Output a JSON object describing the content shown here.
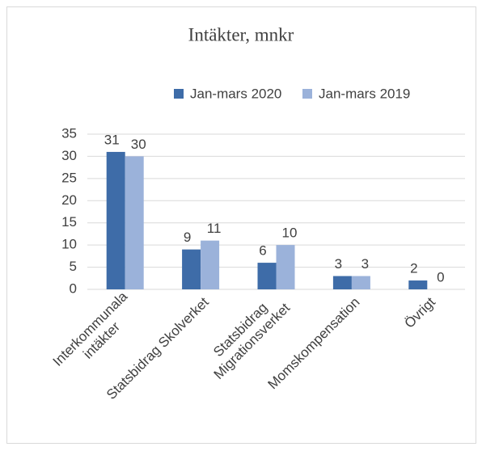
{
  "chart_data": {
    "type": "bar",
    "title": "Intäkter, mnkr",
    "categories": [
      "Interkommunala\nintäkter",
      "Statsbidrag Skolverket",
      "Statsbidrag\nMigrationsverket",
      "Momskompensation",
      "Övrigt"
    ],
    "series": [
      {
        "name": "Jan-mars 2020",
        "color": "#3e6ca8",
        "values": [
          31,
          9,
          6,
          3,
          2
        ]
      },
      {
        "name": "Jan-mars 2019",
        "color": "#9bb2da",
        "values": [
          30,
          11,
          10,
          3,
          0
        ]
      }
    ],
    "ylim": [
      0,
      35
    ],
    "yticks": [
      0,
      5,
      10,
      15,
      20,
      25,
      30,
      35
    ],
    "grid": true,
    "legend": "top"
  }
}
